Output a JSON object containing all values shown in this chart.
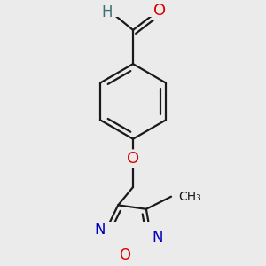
{
  "bg_color": "#ebebeb",
  "bond_color": "#1a1a1a",
  "bond_width": 1.6,
  "atom_colors": {
    "O": "#dd0000",
    "N": "#0000bb",
    "H": "#3d7070",
    "C": "#1a1a1a"
  },
  "font_size": 11
}
